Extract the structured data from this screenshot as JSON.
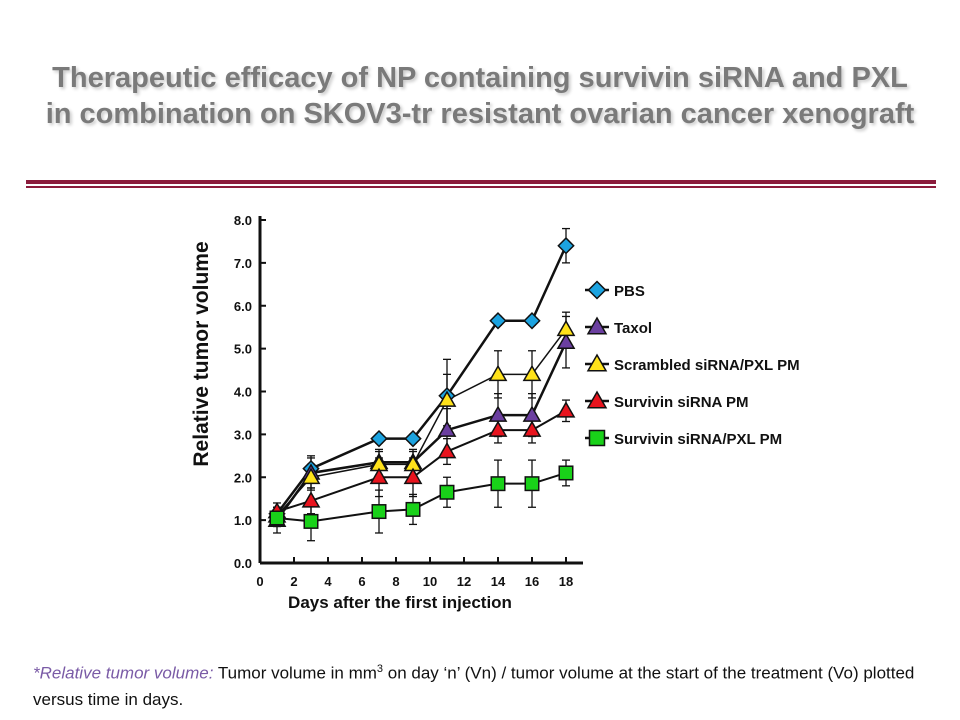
{
  "slide": {
    "title_line1": "Therapeutic efficacy of NP containing survivin siRNA and PXL",
    "title_line2": "in combination on SKOV3-tr resistant ovarian cancer xenograft",
    "accent_color": "#8b1c3c"
  },
  "footnote": {
    "term": "*Relative tumor volume:",
    "text_a": " Tumor volume in mm",
    "superscript": "3",
    "text_b": " on day ‘n’ (Vn) / tumor volume at the start of the treatment (Vo) plotted versus time in days."
  },
  "chart_data": {
    "type": "line",
    "title": "",
    "xlabel": "Days after the first injection",
    "ylabel": "Relative tumor volume",
    "xlim": [
      0,
      19
    ],
    "ylim": [
      0,
      8
    ],
    "xticks": [
      "0",
      "2",
      "4",
      "6",
      "8",
      "10",
      "12",
      "14",
      "16",
      "18"
    ],
    "yticks": [
      "0.0",
      "1.0",
      "2.0",
      "3.0",
      "4.0",
      "5.0",
      "6.0",
      "7.0",
      "8.0"
    ],
    "grid": false,
    "legend_position": "right",
    "series": [
      {
        "name": "PBS",
        "marker": "diamond",
        "color": "#1ca3e0",
        "x": [
          1,
          3,
          7,
          9,
          11,
          14,
          16,
          18
        ],
        "y": [
          1.15,
          2.2,
          2.9,
          2.9,
          3.9,
          5.65,
          5.65,
          7.4
        ],
        "err": [
          0.15,
          0.3,
          0.1,
          0.1,
          0.85,
          0.1,
          0.1,
          0.4
        ]
      },
      {
        "name": "Taxol",
        "marker": "triangle",
        "color": "#6b3fa0",
        "x": [
          1,
          3,
          7,
          9,
          11,
          14,
          16,
          18
        ],
        "y": [
          1.0,
          2.1,
          2.35,
          2.35,
          3.1,
          3.45,
          3.45,
          5.15
        ],
        "err": [
          0.3,
          0.35,
          0.3,
          0.3,
          0.5,
          0.5,
          0.5,
          0.6
        ]
      },
      {
        "name": "Scrambled siRNA/PXL PM",
        "marker": "triangle",
        "color": "#ffe21a",
        "x": [
          1,
          3,
          7,
          9,
          11,
          14,
          16,
          18
        ],
        "y": [
          1.1,
          2.0,
          2.3,
          2.3,
          3.8,
          4.4,
          4.4,
          5.45
        ],
        "err": [
          0.2,
          0.3,
          0.3,
          0.3,
          0.6,
          0.55,
          0.55,
          0.4
        ]
      },
      {
        "name": "Survivin siRNA PM",
        "marker": "triangle",
        "color": "#e8141e",
        "x": [
          1,
          3,
          7,
          9,
          11,
          14,
          16,
          18
        ],
        "y": [
          1.2,
          1.45,
          2.0,
          2.0,
          2.6,
          3.1,
          3.1,
          3.55
        ],
        "err": [
          0.2,
          0.3,
          0.45,
          0.45,
          0.3,
          0.3,
          0.3,
          0.25
        ]
      },
      {
        "name": "Survivin siRNA/PXL PM",
        "marker": "square",
        "color": "#19d119",
        "x": [
          1,
          3,
          7,
          9,
          11,
          14,
          16,
          18
        ],
        "y": [
          1.05,
          0.97,
          1.2,
          1.25,
          1.65,
          1.85,
          1.85,
          2.1
        ],
        "err": [
          0.2,
          0.45,
          0.5,
          0.35,
          0.35,
          0.55,
          0.55,
          0.3
        ]
      }
    ]
  }
}
